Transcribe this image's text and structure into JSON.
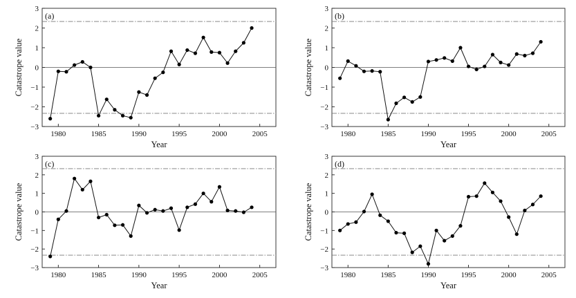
{
  "chart_data": [
    {
      "type": "line",
      "panel_label": "(a)",
      "xlabel": "Year",
      "ylabel": "Catastrope value",
      "xlim": [
        1978,
        2007
      ],
      "ylim": [
        -3,
        3
      ],
      "xticks": [
        1980,
        1985,
        1990,
        1995,
        2000,
        2005
      ],
      "yticks": [
        -3,
        -2,
        -1,
        0,
        1,
        2,
        3
      ],
      "reference_lines": [
        -2.33,
        0,
        2.33
      ],
      "x": [
        1979,
        1980,
        1981,
        1982,
        1983,
        1984,
        1985,
        1986,
        1987,
        1988,
        1989,
        1990,
        1991,
        1992,
        1993,
        1994,
        1995,
        1996,
        1997,
        1998,
        1999,
        2000,
        2001,
        2002,
        2003,
        2004
      ],
      "values": [
        -2.6,
        -0.2,
        -0.22,
        0.12,
        0.28,
        0.0,
        -2.45,
        -1.62,
        -2.15,
        -2.45,
        -2.55,
        -1.25,
        -1.4,
        -0.55,
        -0.25,
        0.82,
        0.15,
        0.88,
        0.72,
        1.52,
        0.78,
        0.75,
        0.22,
        0.82,
        1.25,
        2.0
      ]
    },
    {
      "type": "line",
      "panel_label": "(b)",
      "xlabel": "Year",
      "ylabel": "Catastrope value",
      "xlim": [
        1978,
        2007
      ],
      "ylim": [
        -3,
        3
      ],
      "xticks": [
        1980,
        1985,
        1990,
        1995,
        2000,
        2005
      ],
      "yticks": [
        -3,
        -2,
        -1,
        0,
        1,
        2,
        3
      ],
      "reference_lines": [
        -2.33,
        0,
        2.33
      ],
      "x": [
        1979,
        1980,
        1981,
        1982,
        1983,
        1984,
        1985,
        1986,
        1987,
        1988,
        1989,
        1990,
        1991,
        1992,
        1993,
        1994,
        1995,
        1996,
        1997,
        1998,
        1999,
        2000,
        2001,
        2002,
        2003,
        2004
      ],
      "values": [
        -0.55,
        0.32,
        0.08,
        -0.2,
        -0.18,
        -0.22,
        -2.65,
        -1.82,
        -1.52,
        -1.75,
        -1.5,
        0.3,
        0.38,
        0.48,
        0.32,
        1.0,
        0.05,
        -0.1,
        0.05,
        0.65,
        0.25,
        0.12,
        0.68,
        0.6,
        0.72,
        1.3
      ]
    },
    {
      "type": "line",
      "panel_label": "(c)",
      "xlabel": "Year",
      "ylabel": "Catastrope value",
      "xlim": [
        1978,
        2007
      ],
      "ylim": [
        -3,
        3
      ],
      "xticks": [
        1980,
        1985,
        1990,
        1995,
        2000,
        2005
      ],
      "yticks": [
        -3,
        -2,
        -1,
        0,
        1,
        2,
        3
      ],
      "reference_lines": [
        -2.33,
        0,
        2.33
      ],
      "x": [
        1979,
        1980,
        1981,
        1982,
        1983,
        1984,
        1985,
        1986,
        1987,
        1988,
        1989,
        1990,
        1991,
        1992,
        1993,
        1994,
        1995,
        1996,
        1997,
        1998,
        1999,
        2000,
        2001,
        2002,
        2003,
        2004
      ],
      "values": [
        -2.4,
        -0.4,
        0.05,
        1.8,
        1.2,
        1.65,
        -0.3,
        -0.15,
        -0.72,
        -0.7,
        -1.3,
        0.35,
        -0.05,
        0.12,
        0.05,
        0.2,
        -0.98,
        0.25,
        0.42,
        1.0,
        0.55,
        1.35,
        0.08,
        0.05,
        -0.02,
        0.25
      ]
    },
    {
      "type": "line",
      "panel_label": "(d)",
      "xlabel": "Year",
      "ylabel": "Catastrope value",
      "xlim": [
        1978,
        2007
      ],
      "ylim": [
        -3,
        3
      ],
      "xticks": [
        1980,
        1985,
        1990,
        1995,
        2000,
        2005
      ],
      "yticks": [
        -3,
        -2,
        -1,
        0,
        1,
        2,
        3
      ],
      "reference_lines": [
        -2.33,
        0,
        2.33
      ],
      "x": [
        1979,
        1980,
        1981,
        1982,
        1983,
        1984,
        1985,
        1986,
        1987,
        1988,
        1989,
        1990,
        1991,
        1992,
        1993,
        1994,
        1995,
        1996,
        1997,
        1998,
        1999,
        2000,
        2001,
        2002,
        2003,
        2004
      ],
      "values": [
        -1.0,
        -0.65,
        -0.55,
        0.02,
        0.95,
        -0.18,
        -0.5,
        -1.12,
        -1.15,
        -2.18,
        -1.85,
        -2.8,
        -1.0,
        -1.55,
        -1.3,
        -0.75,
        0.82,
        0.85,
        1.55,
        1.05,
        0.58,
        -0.28,
        -1.2,
        0.08,
        0.4,
        0.85
      ]
    }
  ]
}
